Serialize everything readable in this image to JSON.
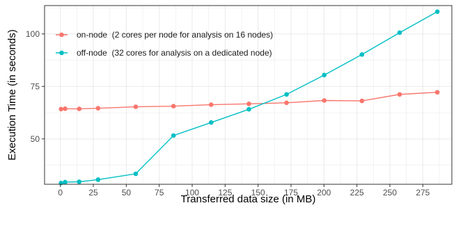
{
  "chart_data": {
    "type": "line",
    "title": "",
    "xlabel": "Transferred data size (in MB)",
    "ylabel": "Execution Time (in seconds)",
    "xlim": [
      -12,
      297
    ],
    "ylim": [
      28.4,
      113.5
    ],
    "xticks": [
      0,
      25,
      50,
      75,
      100,
      125,
      150,
      175,
      200,
      225,
      250,
      275
    ],
    "yticks": [
      50,
      75,
      100
    ],
    "grid": true,
    "legend_position": "top-left",
    "series": [
      {
        "name": "on-node  (2 cores per node for analysis on 16 nodes)",
        "color": "#F8766D",
        "x": [
          0.5,
          3.6,
          14.3,
          28.6,
          57.2,
          85.8,
          114.4,
          143.0,
          171.6,
          200.2,
          228.8,
          257.4,
          286.0
        ],
        "y": [
          64.2,
          64.4,
          64.3,
          64.6,
          65.3,
          65.6,
          66.3,
          66.7,
          67.2,
          68.3,
          68.1,
          71.2,
          72.2
        ]
      },
      {
        "name": "off-node  (32 cores for analysis on a dedicated node)",
        "color": "#00BFC4",
        "x": [
          0.5,
          3.6,
          14.3,
          28.6,
          57.2,
          85.8,
          114.4,
          143.0,
          171.6,
          200.2,
          228.8,
          257.4,
          286.0
        ],
        "y": [
          29.0,
          29.4,
          29.6,
          30.6,
          33.4,
          51.6,
          57.8,
          64.1,
          71.2,
          80.4,
          90.2,
          100.6,
          110.6
        ]
      }
    ]
  }
}
